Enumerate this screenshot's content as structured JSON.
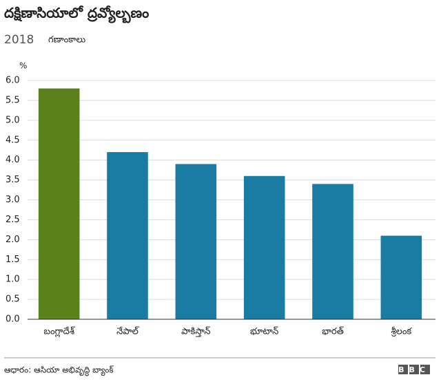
{
  "chart_data": {
    "type": "bar",
    "title": "దక్షిణాసియాలో ద్రవ్యోల్బణం",
    "subtitle": "2018",
    "subtitle_note": "గణాంకాలు",
    "y_label": "%",
    "categories": [
      "బంగ్లాదేశ్",
      "నేపాల్",
      "పాకిస్తాన్",
      "భూటాన్",
      "భారత్",
      "శ్రీలంక"
    ],
    "values": [
      5.8,
      4.2,
      3.9,
      3.6,
      3.4,
      2.1
    ],
    "colors": [
      "#588119",
      "#1a7ca3",
      "#1a7ca3",
      "#1a7ca3",
      "#1a7ca3",
      "#1a7ca3"
    ],
    "ylim": [
      0,
      6
    ],
    "yticks": [
      {
        "value": 0,
        "label": "0.0"
      },
      {
        "value": 0.5,
        "label": "0.5"
      },
      {
        "value": 1,
        "label": "1.0"
      },
      {
        "value": 1.5,
        "label": "1.5"
      },
      {
        "value": 2,
        "label": "2.0"
      },
      {
        "value": 2.5,
        "label": "2.5"
      },
      {
        "value": 3,
        "label": "3.0"
      },
      {
        "value": 3.5,
        "label": "3.5"
      },
      {
        "value": 4,
        "label": "4.0"
      },
      {
        "value": 4.5,
        "label": "4.5"
      },
      {
        "value": 5,
        "label": "5.0"
      },
      {
        "value": 5.5,
        "label": "5.5"
      },
      {
        "value": 6,
        "label": "6.0"
      }
    ],
    "grid": true,
    "source": "ఆధారం: ఆసియా అభివృద్ధి బ్యాంక్",
    "logo": "BBC"
  }
}
